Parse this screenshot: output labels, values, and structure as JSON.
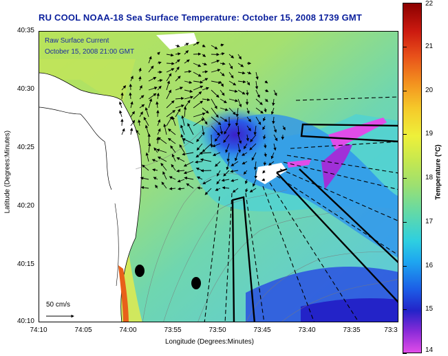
{
  "title": "RU COOL  NOAA-18  Sea Surface Temperature:  October 15, 2008 1739 GMT",
  "legend": {
    "current_label": "Raw Surface Current",
    "current_time": "October 15, 2008 21:00 GMT"
  },
  "scale_label": "50 cm/s",
  "axes": {
    "xlabel": "Longitude (Degrees:Minutes)",
    "ylabel": "Latitude (Degrees:Minutes)",
    "xticks": [
      "74:10",
      "74:05",
      "74:00",
      "73:55",
      "73:50",
      "73:45",
      "73:40",
      "73:35",
      "73:3"
    ],
    "yticks": [
      "40:35",
      "40:30",
      "40:25",
      "40:20",
      "40:15",
      "40:10"
    ]
  },
  "colorbar": {
    "label": "Temperature (°C)",
    "ticks": [
      "22",
      "21",
      "20",
      "19",
      "18",
      "17",
      "16",
      "15",
      "14"
    ],
    "min": 14,
    "max": 22
  },
  "colors": {
    "title": "#0a1f9c",
    "land": "#ffffff",
    "water_mid": "#9de070",
    "cold_plume": "#1c5ce6"
  }
}
